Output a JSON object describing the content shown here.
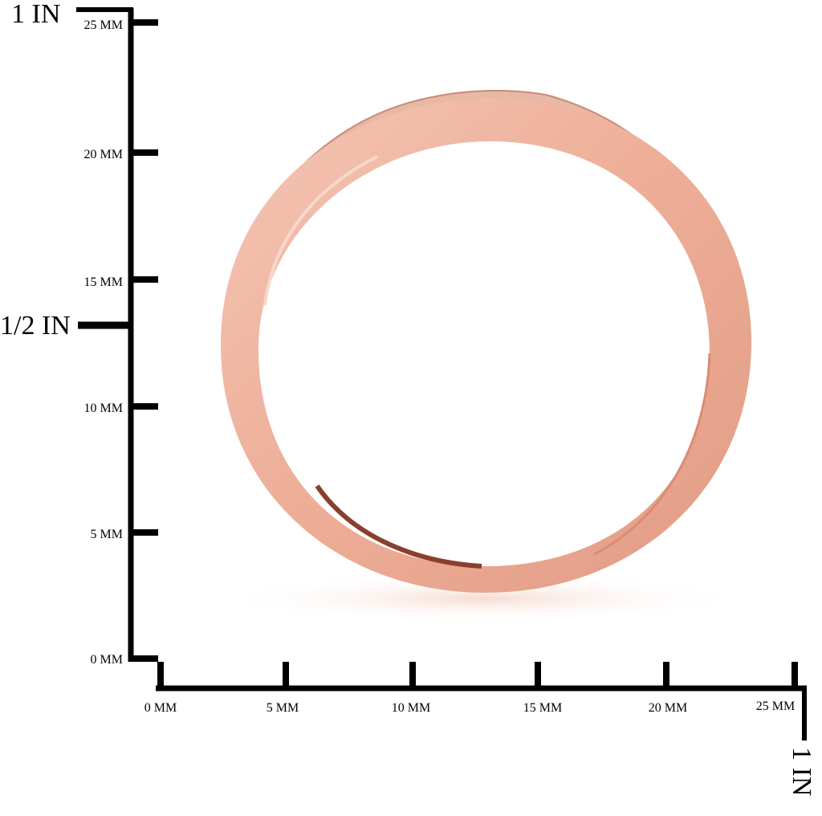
{
  "ruler": {
    "inch_top": "1 IN",
    "inch_half": "1/2 IN",
    "inch_bottom": "1 IN",
    "y_labels": [
      "25 MM",
      "20 MM",
      "15 MM",
      "10 MM",
      "5 MM",
      "0 MM"
    ],
    "x_labels": [
      "0 MM",
      "5 MM",
      "10 MM",
      "15 MM",
      "20 MM",
      "25 MM"
    ]
  }
}
